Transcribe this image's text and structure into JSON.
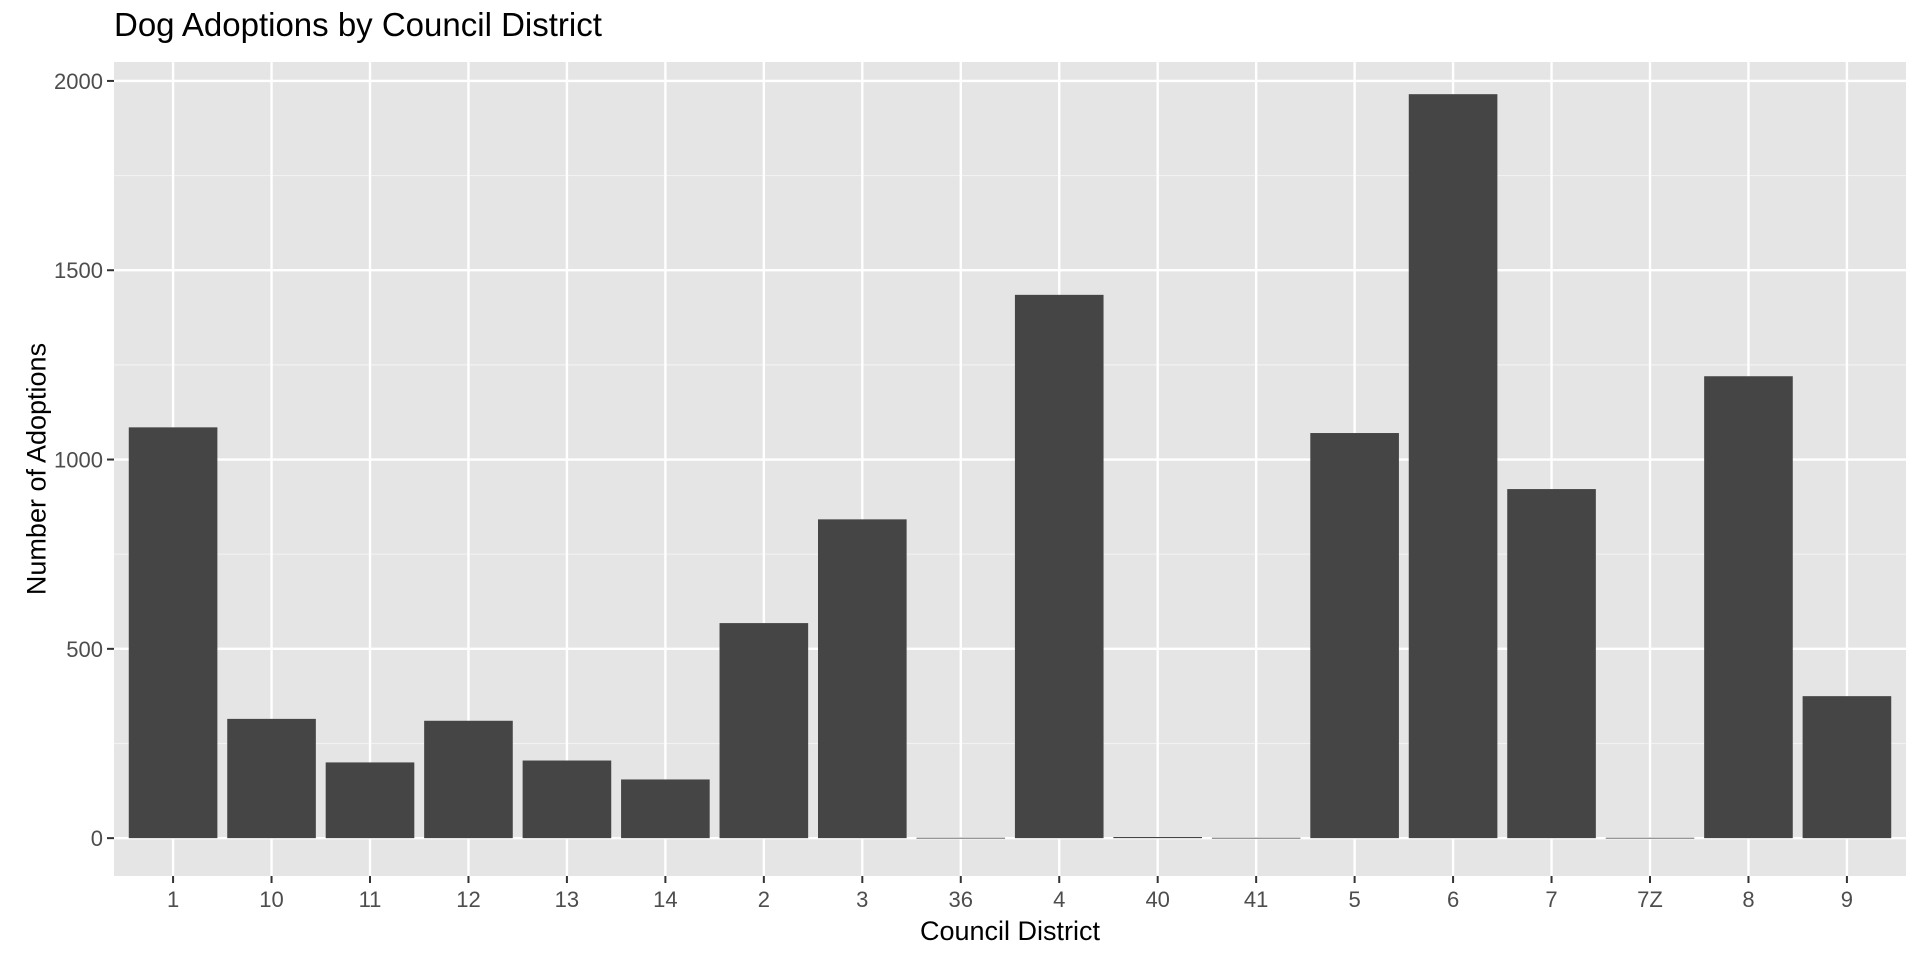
{
  "chart_data": {
    "type": "bar",
    "title": "Dog Adoptions by Council District",
    "xlabel": "Council District",
    "ylabel": "Number of Adoptions",
    "categories": [
      "1",
      "10",
      "11",
      "12",
      "13",
      "14",
      "2",
      "3",
      "36",
      "4",
      "40",
      "41",
      "5",
      "6",
      "7",
      "7Z",
      "8",
      "9"
    ],
    "values": [
      1085,
      315,
      200,
      310,
      205,
      155,
      568,
      842,
      1,
      1435,
      3,
      1,
      1070,
      1965,
      922,
      1,
      1220,
      375
    ],
    "ylim": [
      -100,
      2050
    ],
    "yticks": [
      0,
      500,
      1000,
      1500,
      2000
    ],
    "grid": true,
    "legend": "none",
    "colors": {
      "bar": "#454545",
      "panel": "#e5e5e5",
      "grid_major": "#ffffff",
      "grid_minor": "#f2f2f2",
      "tick_text": "#4d4d4d",
      "tick_mark": "#333333"
    }
  }
}
